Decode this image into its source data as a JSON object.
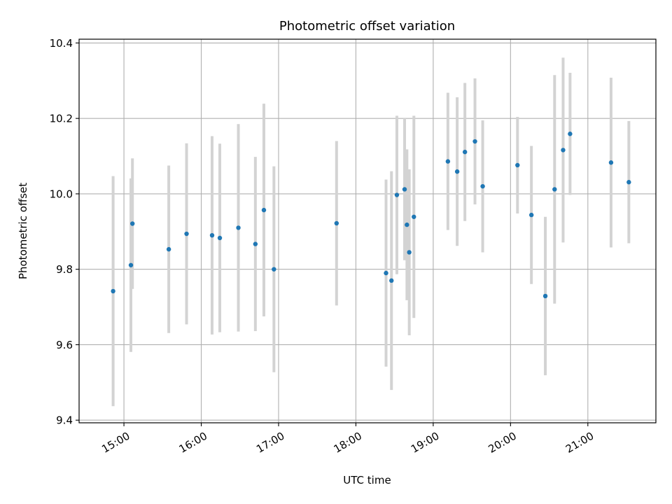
{
  "chart_data": {
    "type": "scatter",
    "title": "Photometric offset variation",
    "xlabel": "UTC time",
    "ylabel": "Photometric offset",
    "x_unit": "UTC time (hours)",
    "xlim": [
      14.42,
      21.88
    ],
    "ylim": [
      9.393,
      10.41
    ],
    "xticks": [
      15,
      16,
      17,
      18,
      19,
      20,
      21
    ],
    "xtick_labels": [
      "15:00",
      "16:00",
      "17:00",
      "18:00",
      "19:00",
      "20:00",
      "21:00"
    ],
    "yticks": [
      9.4,
      9.6,
      9.8,
      10.0,
      10.2,
      10.4
    ],
    "ytick_labels": [
      "9.4",
      "9.6",
      "9.8",
      "10.0",
      "10.2",
      "10.4"
    ],
    "grid": true,
    "colors": {
      "point": "#1f77b4",
      "errorbar": "#d3d3d3",
      "grid": "#b0b0b0"
    },
    "points": [
      {
        "x": 14.86,
        "y": 9.742,
        "err": 0.305
      },
      {
        "x": 15.09,
        "y": 9.811,
        "err": 0.23
      },
      {
        "x": 15.11,
        "y": 9.921,
        "err": 0.173
      },
      {
        "x": 15.58,
        "y": 9.853,
        "err": 0.222
      },
      {
        "x": 15.81,
        "y": 9.894,
        "err": 0.24
      },
      {
        "x": 16.14,
        "y": 9.89,
        "err": 0.263
      },
      {
        "x": 16.24,
        "y": 9.883,
        "err": 0.25
      },
      {
        "x": 16.48,
        "y": 9.91,
        "err": 0.275
      },
      {
        "x": 16.7,
        "y": 9.867,
        "err": 0.231
      },
      {
        "x": 16.81,
        "y": 9.957,
        "err": 0.282
      },
      {
        "x": 16.94,
        "y": 9.8,
        "err": 0.273
      },
      {
        "x": 17.75,
        "y": 9.922,
        "err": 0.218
      },
      {
        "x": 18.39,
        "y": 9.79,
        "err": 0.248
      },
      {
        "x": 18.46,
        "y": 9.77,
        "err": 0.29
      },
      {
        "x": 18.53,
        "y": 9.997,
        "err": 0.21
      },
      {
        "x": 18.63,
        "y": 10.012,
        "err": 0.188
      },
      {
        "x": 18.66,
        "y": 9.918,
        "err": 0.2
      },
      {
        "x": 18.69,
        "y": 9.845,
        "err": 0.22
      },
      {
        "x": 18.75,
        "y": 9.939,
        "err": 0.268
      },
      {
        "x": 19.19,
        "y": 10.086,
        "err": 0.182
      },
      {
        "x": 19.31,
        "y": 10.059,
        "err": 0.197
      },
      {
        "x": 19.41,
        "y": 10.111,
        "err": 0.183
      },
      {
        "x": 19.54,
        "y": 10.139,
        "err": 0.167
      },
      {
        "x": 19.64,
        "y": 10.02,
        "err": 0.175
      },
      {
        "x": 20.09,
        "y": 10.076,
        "err": 0.128
      },
      {
        "x": 20.27,
        "y": 9.944,
        "err": 0.183
      },
      {
        "x": 20.45,
        "y": 9.729,
        "err": 0.21
      },
      {
        "x": 20.57,
        "y": 10.012,
        "err": 0.303
      },
      {
        "x": 20.68,
        "y": 10.116,
        "err": 0.245
      },
      {
        "x": 20.77,
        "y": 10.159,
        "err": 0.162
      },
      {
        "x": 21.3,
        "y": 10.083,
        "err": 0.225
      },
      {
        "x": 21.53,
        "y": 10.031,
        "err": 0.162
      }
    ]
  }
}
